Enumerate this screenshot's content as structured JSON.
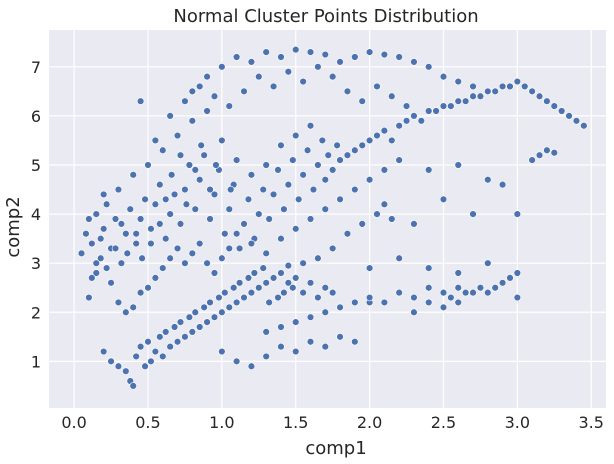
{
  "chart_data": {
    "type": "scatter",
    "title": "Normal Cluster Points Distribution",
    "xlabel": "comp1",
    "ylabel": "comp2",
    "xlim": [
      -0.17,
      3.6
    ],
    "ylim": [
      0.05,
      7.75
    ],
    "xticks": [
      0.0,
      0.5,
      1.0,
      1.5,
      2.0,
      2.5,
      3.0,
      3.5
    ],
    "xtick_labels": [
      "0.0",
      "0.5",
      "1.0",
      "1.5",
      "2.0",
      "2.5",
      "3.0",
      "3.5"
    ],
    "yticks": [
      1,
      2,
      3,
      4,
      5,
      6,
      7
    ],
    "ytick_labels": [
      "1",
      "2",
      "3",
      "4",
      "5",
      "6",
      "7"
    ],
    "grid": true,
    "colors": {
      "background": "#eaeaf2",
      "grid": "#ffffff",
      "point": "#4c72b0",
      "point_edge": "#ffffff"
    },
    "points": [
      [
        0.05,
        3.2
      ],
      [
        0.08,
        3.6
      ],
      [
        0.1,
        3.9
      ],
      [
        0.12,
        3.4
      ],
      [
        0.15,
        2.8
      ],
      [
        0.18,
        3.1
      ],
      [
        0.2,
        3.7
      ],
      [
        0.22,
        4.2
      ],
      [
        0.25,
        3.3
      ],
      [
        0.28,
        3.9
      ],
      [
        0.3,
        4.5
      ],
      [
        0.32,
        3.0
      ],
      [
        0.35,
        3.6
      ],
      [
        0.38,
        4.1
      ],
      [
        0.4,
        4.8
      ],
      [
        0.42,
        3.4
      ],
      [
        0.45,
        3.9
      ],
      [
        0.48,
        4.3
      ],
      [
        0.5,
        5.0
      ],
      [
        0.52,
        3.7
      ],
      [
        0.55,
        4.2
      ],
      [
        0.58,
        4.6
      ],
      [
        0.6,
        5.3
      ],
      [
        0.62,
        3.5
      ],
      [
        0.65,
        4.0
      ],
      [
        0.68,
        4.4
      ],
      [
        0.7,
        5.6
      ],
      [
        0.72,
        3.8
      ],
      [
        0.75,
        4.5
      ],
      [
        0.78,
        5.0
      ],
      [
        0.8,
        5.9
      ],
      [
        0.82,
        4.1
      ],
      [
        0.85,
        4.7
      ],
      [
        0.88,
        5.2
      ],
      [
        0.9,
        6.1
      ],
      [
        0.92,
        3.9
      ],
      [
        0.95,
        4.4
      ],
      [
        0.98,
        4.9
      ],
      [
        1.0,
        5.5
      ],
      [
        1.02,
        3.6
      ],
      [
        1.05,
        4.1
      ],
      [
        1.08,
        4.6
      ],
      [
        1.1,
        5.1
      ],
      [
        1.12,
        3.3
      ],
      [
        1.15,
        3.8
      ],
      [
        1.18,
        4.3
      ],
      [
        1.2,
        4.8
      ],
      [
        1.22,
        3.5
      ],
      [
        1.25,
        4.0
      ],
      [
        1.28,
        4.5
      ],
      [
        1.3,
        5.0
      ],
      [
        1.32,
        3.9
      ],
      [
        1.35,
        4.4
      ],
      [
        1.38,
        4.9
      ],
      [
        1.4,
        5.4
      ],
      [
        1.42,
        4.1
      ],
      [
        1.45,
        4.6
      ],
      [
        1.48,
        5.1
      ],
      [
        1.5,
        5.6
      ],
      [
        1.52,
        4.3
      ],
      [
        1.55,
        4.8
      ],
      [
        1.58,
        5.3
      ],
      [
        1.6,
        5.8
      ],
      [
        1.62,
        4.5
      ],
      [
        1.65,
        5.0
      ],
      [
        1.68,
        5.5
      ],
      [
        1.7,
        4.7
      ],
      [
        1.72,
        5.2
      ],
      [
        1.75,
        4.9
      ],
      [
        1.78,
        5.4
      ],
      [
        1.8,
        5.1
      ],
      [
        1.85,
        5.2
      ],
      [
        1.9,
        5.3
      ],
      [
        1.95,
        5.4
      ],
      [
        2.0,
        5.5
      ],
      [
        2.05,
        5.6
      ],
      [
        2.1,
        5.7
      ],
      [
        2.15,
        5.5
      ],
      [
        2.2,
        5.8
      ],
      [
        2.25,
        5.9
      ],
      [
        2.3,
        6.0
      ],
      [
        2.35,
        5.9
      ],
      [
        2.4,
        6.1
      ],
      [
        2.45,
        6.1
      ],
      [
        2.5,
        6.2
      ],
      [
        2.55,
        6.2
      ],
      [
        2.6,
        6.3
      ],
      [
        2.65,
        6.3
      ],
      [
        2.7,
        6.4
      ],
      [
        2.75,
        6.4
      ],
      [
        2.8,
        6.5
      ],
      [
        2.85,
        6.5
      ],
      [
        2.9,
        6.6
      ],
      [
        2.95,
        6.6
      ],
      [
        3.0,
        6.7
      ],
      [
        3.05,
        6.6
      ],
      [
        3.1,
        6.5
      ],
      [
        3.15,
        6.4
      ],
      [
        3.2,
        6.3
      ],
      [
        3.25,
        6.2
      ],
      [
        3.3,
        6.1
      ],
      [
        3.35,
        6.0
      ],
      [
        3.4,
        5.9
      ],
      [
        3.45,
        5.8
      ],
      [
        1.0,
        7.0
      ],
      [
        1.1,
        7.2
      ],
      [
        1.2,
        7.1
      ],
      [
        1.3,
        7.3
      ],
      [
        1.4,
        7.2
      ],
      [
        1.5,
        7.35
      ],
      [
        1.6,
        7.3
      ],
      [
        1.7,
        7.25
      ],
      [
        1.8,
        7.1
      ],
      [
        1.9,
        7.2
      ],
      [
        2.0,
        7.3
      ],
      [
        2.1,
        7.25
      ],
      [
        2.2,
        7.2
      ],
      [
        2.3,
        7.1
      ],
      [
        2.4,
        7.0
      ],
      [
        2.5,
        6.8
      ],
      [
        2.6,
        6.7
      ],
      [
        2.7,
        6.6
      ],
      [
        0.9,
        6.8
      ],
      [
        0.8,
        6.5
      ],
      [
        0.2,
        1.2
      ],
      [
        0.25,
        1.0
      ],
      [
        0.3,
        0.9
      ],
      [
        0.35,
        0.8
      ],
      [
        0.38,
        0.6
      ],
      [
        0.4,
        0.5
      ],
      [
        0.42,
        1.1
      ],
      [
        0.45,
        1.3
      ],
      [
        0.48,
        0.9
      ],
      [
        0.5,
        1.4
      ],
      [
        0.52,
        1.0
      ],
      [
        0.55,
        1.2
      ],
      [
        0.58,
        1.5
      ],
      [
        0.6,
        1.1
      ],
      [
        0.62,
        1.6
      ],
      [
        0.65,
        1.3
      ],
      [
        0.68,
        1.7
      ],
      [
        0.7,
        1.4
      ],
      [
        0.72,
        1.8
      ],
      [
        0.75,
        1.5
      ],
      [
        0.78,
        1.9
      ],
      [
        0.8,
        1.6
      ],
      [
        0.82,
        2.0
      ],
      [
        0.85,
        1.7
      ],
      [
        0.88,
        2.1
      ],
      [
        0.9,
        1.8
      ],
      [
        0.92,
        2.2
      ],
      [
        0.95,
        1.9
      ],
      [
        0.98,
        2.3
      ],
      [
        1.0,
        2.0
      ],
      [
        1.02,
        2.4
      ],
      [
        1.05,
        2.1
      ],
      [
        1.08,
        2.5
      ],
      [
        1.1,
        2.2
      ],
      [
        1.12,
        2.6
      ],
      [
        1.15,
        2.3
      ],
      [
        1.18,
        2.7
      ],
      [
        1.2,
        2.4
      ],
      [
        1.22,
        2.8
      ],
      [
        1.25,
        2.5
      ],
      [
        1.28,
        2.9
      ],
      [
        1.3,
        2.6
      ],
      [
        1.32,
        2.2
      ],
      [
        1.35,
        2.7
      ],
      [
        1.38,
        2.3
      ],
      [
        1.4,
        2.8
      ],
      [
        1.42,
        2.4
      ],
      [
        1.45,
        2.6
      ],
      [
        1.48,
        2.5
      ],
      [
        1.5,
        2.7
      ],
      [
        1.55,
        2.4
      ],
      [
        1.6,
        2.6
      ],
      [
        1.65,
        2.3
      ],
      [
        1.7,
        2.5
      ],
      [
        1.75,
        2.4
      ],
      [
        1.0,
        1.2
      ],
      [
        1.1,
        1.0
      ],
      [
        1.2,
        0.9
      ],
      [
        1.3,
        1.1
      ],
      [
        1.4,
        1.3
      ],
      [
        1.5,
        1.2
      ],
      [
        1.6,
        1.4
      ],
      [
        1.7,
        1.3
      ],
      [
        1.8,
        1.5
      ],
      [
        1.9,
        1.4
      ],
      [
        1.3,
        1.6
      ],
      [
        1.4,
        1.7
      ],
      [
        1.5,
        1.8
      ],
      [
        1.6,
        1.9
      ],
      [
        1.7,
        2.0
      ],
      [
        1.8,
        2.1
      ],
      [
        1.9,
        2.2
      ],
      [
        2.0,
        2.2
      ],
      [
        2.0,
        2.3
      ],
      [
        2.1,
        2.2
      ],
      [
        2.2,
        2.4
      ],
      [
        2.3,
        2.3
      ],
      [
        2.4,
        2.5
      ],
      [
        2.5,
        2.4
      ],
      [
        2.55,
        2.3
      ],
      [
        2.6,
        2.5
      ],
      [
        2.65,
        2.4
      ],
      [
        2.7,
        2.4
      ],
      [
        2.75,
        2.5
      ],
      [
        2.8,
        2.4
      ],
      [
        2.85,
        2.5
      ],
      [
        2.9,
        2.6
      ],
      [
        2.95,
        2.7
      ],
      [
        3.0,
        2.8
      ],
      [
        2.4,
        2.2
      ],
      [
        2.5,
        2.1
      ],
      [
        2.6,
        2.2
      ],
      [
        2.3,
        2.0
      ],
      [
        2.0,
        2.9
      ],
      [
        2.2,
        3.1
      ],
      [
        2.4,
        2.9
      ],
      [
        2.6,
        2.8
      ],
      [
        2.8,
        3.0
      ],
      [
        3.0,
        2.3
      ],
      [
        2.5,
        4.3
      ],
      [
        2.4,
        4.9
      ],
      [
        2.6,
        5.0
      ],
      [
        2.9,
        4.6
      ],
      [
        3.0,
        4.0
      ],
      [
        2.1,
        4.2
      ],
      [
        2.3,
        3.8
      ],
      [
        2.7,
        4.0
      ],
      [
        2.8,
        4.7
      ],
      [
        3.1,
        5.1
      ],
      [
        3.15,
        5.2
      ],
      [
        3.2,
        5.3
      ],
      [
        3.25,
        5.25
      ],
      [
        0.1,
        2.3
      ],
      [
        0.15,
        4.0
      ],
      [
        0.2,
        4.4
      ],
      [
        0.25,
        2.6
      ],
      [
        0.3,
        2.2
      ],
      [
        0.35,
        2.0
      ],
      [
        0.4,
        2.1
      ],
      [
        0.45,
        2.4
      ],
      [
        0.5,
        2.5
      ],
      [
        0.55,
        2.7
      ],
      [
        0.6,
        2.9
      ],
      [
        0.65,
        3.1
      ],
      [
        0.7,
        3.3
      ],
      [
        0.75,
        3.0
      ],
      [
        0.8,
        3.2
      ],
      [
        0.85,
        3.4
      ],
      [
        0.9,
        3.0
      ],
      [
        0.95,
        2.8
      ],
      [
        1.0,
        3.1
      ],
      [
        1.05,
        3.3
      ],
      [
        0.45,
        6.3
      ],
      [
        0.55,
        5.5
      ],
      [
        0.65,
        6.0
      ],
      [
        0.75,
        6.3
      ],
      [
        0.85,
        6.6
      ],
      [
        0.95,
        6.4
      ],
      [
        1.05,
        6.2
      ],
      [
        1.15,
        6.5
      ],
      [
        1.25,
        6.8
      ],
      [
        1.35,
        6.6
      ],
      [
        1.45,
        6.9
      ],
      [
        1.55,
        6.7
      ],
      [
        1.65,
        7.0
      ],
      [
        1.75,
        6.8
      ],
      [
        1.85,
        6.5
      ],
      [
        1.95,
        6.3
      ],
      [
        2.05,
        6.6
      ],
      [
        2.15,
        6.4
      ],
      [
        2.25,
        6.2
      ],
      [
        1.1,
        3.6
      ],
      [
        1.2,
        3.4
      ],
      [
        1.3,
        3.2
      ],
      [
        1.4,
        3.5
      ],
      [
        1.5,
        3.7
      ],
      [
        1.6,
        3.9
      ],
      [
        1.7,
        4.1
      ],
      [
        1.8,
        4.3
      ],
      [
        1.9,
        4.5
      ],
      [
        2.0,
        4.7
      ],
      [
        2.1,
        4.9
      ],
      [
        2.2,
        5.1
      ],
      [
        1.85,
        3.6
      ],
      [
        1.95,
        3.8
      ],
      [
        2.05,
        4.0
      ],
      [
        2.15,
        3.9
      ],
      [
        1.75,
        3.3
      ],
      [
        1.65,
        3.1
      ],
      [
        1.55,
        3.0
      ],
      [
        1.45,
        2.95
      ],
      [
        0.15,
        3.0
      ],
      [
        0.12,
        2.7
      ],
      [
        0.18,
        3.5
      ],
      [
        0.22,
        2.9
      ],
      [
        0.28,
        3.3
      ],
      [
        0.32,
        3.8
      ],
      [
        0.36,
        3.2
      ],
      [
        0.42,
        3.6
      ],
      [
        0.46,
        3.1
      ],
      [
        0.52,
        3.4
      ],
      [
        0.58,
        3.8
      ],
      [
        0.62,
        4.3
      ],
      [
        0.66,
        4.8
      ],
      [
        0.72,
        5.2
      ],
      [
        0.76,
        4.2
      ],
      [
        0.82,
        4.9
      ],
      [
        0.86,
        5.4
      ],
      [
        0.92,
        4.5
      ],
      [
        0.96,
        5.0
      ],
      [
        1.06,
        4.5
      ]
    ]
  }
}
